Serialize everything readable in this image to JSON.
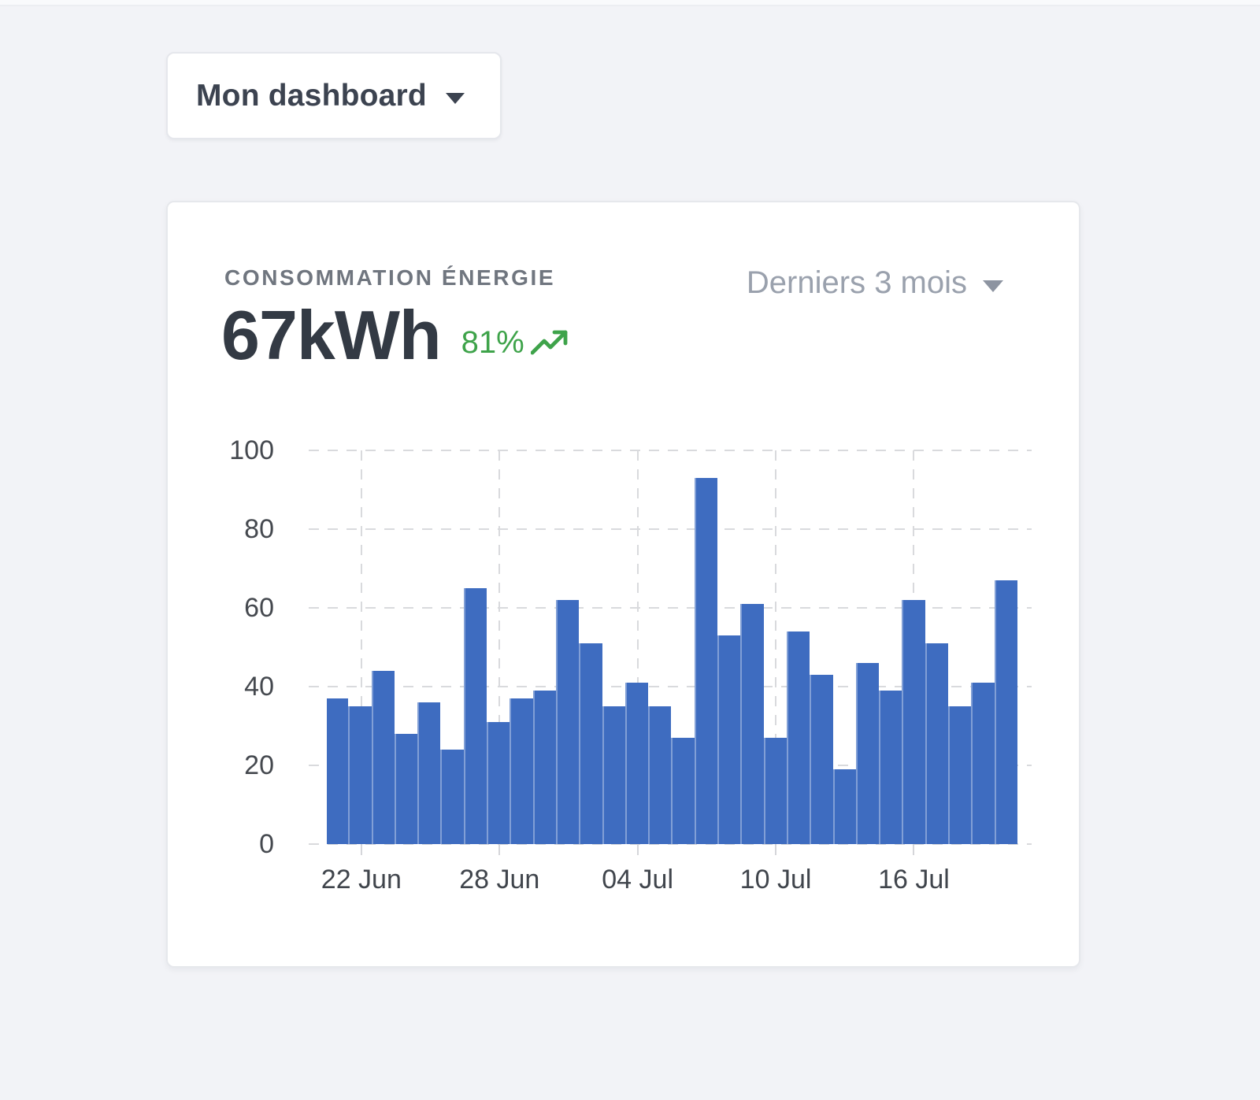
{
  "dashboard_switcher": {
    "label": "Mon dashboard"
  },
  "energy_card": {
    "kicker": "CONSOMMATION ÉNERGIE",
    "value": "67kWh",
    "delta": "81%",
    "delta_color": "#3ea34a",
    "period_selector": "Derniers 3 mois"
  },
  "chart_data": {
    "type": "bar",
    "title": "CONSOMMATION ÉNERGIE",
    "x": [
      "21 Jun",
      "22 Jun",
      "23 Jun",
      "24 Jun",
      "25 Jun",
      "26 Jun",
      "27 Jun",
      "28 Jun",
      "29 Jun",
      "30 Jun",
      "01 Jul",
      "02 Jul",
      "03 Jul",
      "04 Jul",
      "05 Jul",
      "06 Jul",
      "07 Jul",
      "08 Jul",
      "09 Jul",
      "10 Jul",
      "11 Jul",
      "12 Jul",
      "13 Jul",
      "14 Jul",
      "15 Jul",
      "16 Jul",
      "17 Jul",
      "18 Jul",
      "19 Jul",
      "20 Jul"
    ],
    "values": [
      37,
      35,
      44,
      28,
      36,
      24,
      65,
      31,
      37,
      39,
      62,
      51,
      35,
      41,
      35,
      27,
      93,
      53,
      61,
      27,
      54,
      43,
      19,
      46,
      39,
      62,
      51,
      35,
      41,
      67
    ],
    "ylim": [
      0,
      100
    ],
    "yticks": [
      0,
      20,
      40,
      60,
      80,
      100
    ],
    "xtick_labels": [
      "22 Jun",
      "28 Jun",
      "04 Jul",
      "10 Jul",
      "16 Jul"
    ],
    "xtick_indices": [
      1,
      7,
      13,
      19,
      25
    ],
    "bar_color": "#3e6cc0",
    "grid": "dashed",
    "legend": "none"
  }
}
